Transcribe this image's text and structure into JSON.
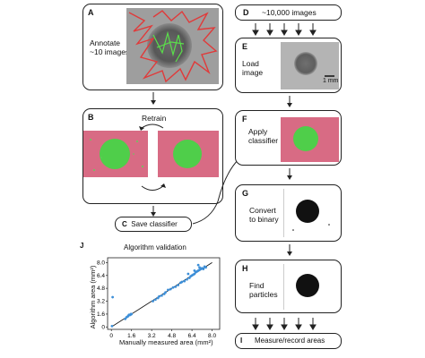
{
  "left_column": {
    "A": {
      "letter": "A",
      "text_line1": "Annotate",
      "text_line2": "~10 images"
    },
    "B": {
      "letter": "B",
      "retrain_label": "Retrain"
    },
    "C": {
      "letter": "C",
      "text": "Save classifier"
    }
  },
  "right_column": {
    "D": {
      "letter": "D",
      "text": "~10,000 images"
    },
    "E": {
      "letter": "E",
      "text_line1": "Load",
      "text_line2": "image",
      "scale_bar": "1 mm"
    },
    "F": {
      "letter": "F",
      "text_line1": "Apply",
      "text_line2": "classifier"
    },
    "G": {
      "letter": "G",
      "text_line1": "Convert",
      "text_line2": "to binary"
    },
    "H": {
      "letter": "H",
      "text_line1": "Find",
      "text_line2": "particles"
    },
    "I": {
      "letter": "I",
      "text": "Measure/record areas"
    }
  },
  "validation_panel": {
    "letter": "J"
  },
  "chart_data": {
    "type": "scatter",
    "title": "Algorithm validation",
    "xlabel": "Manually measured area (mm²)",
    "ylabel": "Algorithm area (mm²)",
    "xlim": [
      -0.3,
      8.6
    ],
    "ylim": [
      -0.3,
      8.6
    ],
    "xticks": [
      "0",
      "1.6",
      "3.2",
      "4.8",
      "6.4",
      "8.0"
    ],
    "yticks": [
      "0",
      "1.6",
      "3.2",
      "4.8",
      "6.4",
      "8.0"
    ],
    "tick_values": [
      0,
      1.6,
      3.2,
      4.8,
      6.4,
      8.0
    ],
    "line": {
      "x": [
        0,
        8.0
      ],
      "y": [
        0,
        8.0
      ]
    },
    "points": {
      "x": [
        0.1,
        0.05,
        1.1,
        1.2,
        1.3,
        1.35,
        1.4,
        1.5,
        1.55,
        1.6,
        3.3,
        3.5,
        3.7,
        3.8,
        4.0,
        4.2,
        4.3,
        4.5,
        4.7,
        4.9,
        5.1,
        5.3,
        5.5,
        5.6,
        5.8,
        6.0,
        6.2,
        6.3,
        6.4,
        6.5,
        6.6,
        6.7,
        6.8,
        6.9,
        7.0,
        7.1,
        7.2,
        7.3,
        7.4,
        7.5,
        6.1,
        6.6,
        7.0,
        6.9
      ],
      "y": [
        3.7,
        0.1,
        1.0,
        1.2,
        1.3,
        1.4,
        1.5,
        1.5,
        1.6,
        1.6,
        3.2,
        3.4,
        3.6,
        3.8,
        3.9,
        4.1,
        4.3,
        4.6,
        4.7,
        4.9,
        5.0,
        5.2,
        5.5,
        5.6,
        5.7,
        5.9,
        6.1,
        6.3,
        6.4,
        6.5,
        6.6,
        6.8,
        6.9,
        7.0,
        7.1,
        7.2,
        7.3,
        7.2,
        7.5,
        7.4,
        6.6,
        7.0,
        7.4,
        7.7
      ]
    }
  }
}
